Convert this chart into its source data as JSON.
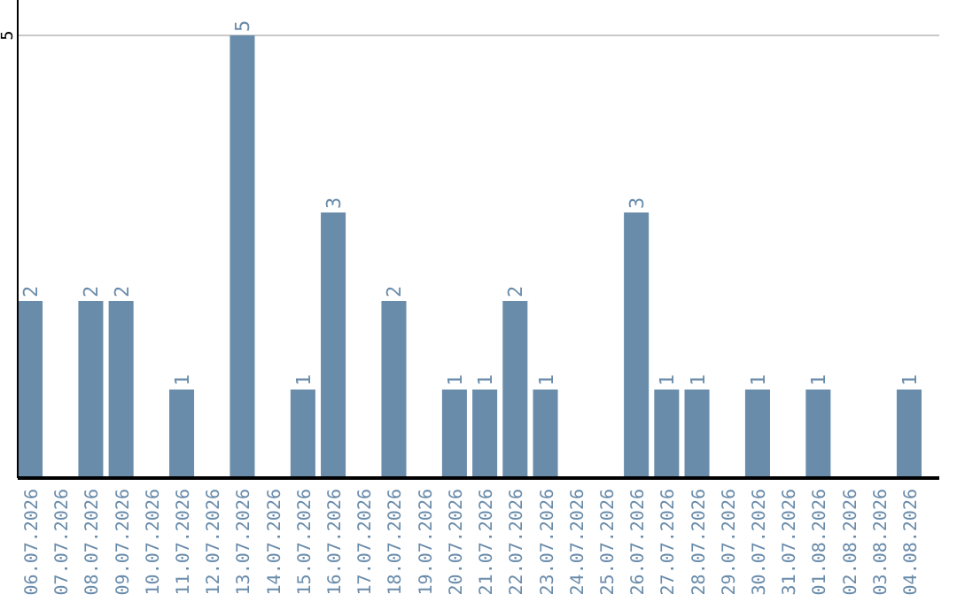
{
  "chart_data": {
    "type": "bar",
    "categories": [
      "06.07.2026",
      "07.07.2026",
      "08.07.2026",
      "09.07.2026",
      "10.07.2026",
      "11.07.2026",
      "12.07.2026",
      "13.07.2026",
      "14.07.2026",
      "15.07.2026",
      "16.07.2026",
      "17.07.2026",
      "18.07.2026",
      "19.07.2026",
      "20.07.2026",
      "21.07.2026",
      "22.07.2026",
      "23.07.2026",
      "24.07.2026",
      "25.07.2026",
      "26.07.2026",
      "27.07.2026",
      "28.07.2026",
      "29.07.2026",
      "30.07.2026",
      "31.07.2026",
      "01.08.2026",
      "02.08.2026",
      "03.08.2026",
      "04.08.2026"
    ],
    "values": [
      2,
      0,
      2,
      2,
      0,
      1,
      0,
      5,
      0,
      1,
      3,
      0,
      2,
      0,
      1,
      1,
      2,
      1,
      0,
      0,
      3,
      1,
      1,
      0,
      1,
      0,
      1,
      0,
      0,
      1
    ],
    "value_labels": [
      "2",
      null,
      "2",
      "2",
      null,
      "1",
      null,
      "5",
      null,
      "1",
      "3",
      null,
      "2",
      null,
      "1",
      "1",
      "2",
      "1",
      null,
      null,
      "3",
      "1",
      "1",
      null,
      "1",
      null,
      "1",
      null,
      null,
      "1"
    ],
    "color": "#6a8cab",
    "ylim": [
      0,
      5
    ],
    "yticks": [
      5
    ],
    "ref_lines": [
      {
        "axis": "y",
        "value": 5,
        "color": "#c8c8c8"
      }
    ]
  }
}
